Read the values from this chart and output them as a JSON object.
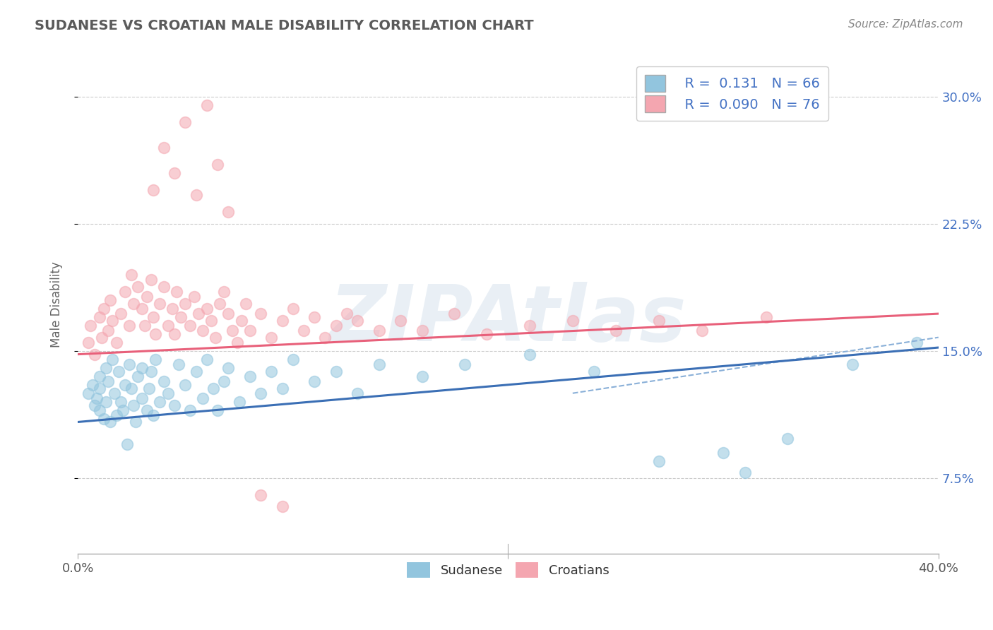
{
  "title": "SUDANESE VS CROATIAN MALE DISABILITY CORRELATION CHART",
  "source": "Source: ZipAtlas.com",
  "ylabel": "Male Disability",
  "xlim": [
    0.0,
    0.4
  ],
  "ylim": [
    0.03,
    0.325
  ],
  "ytick_labels_right": [
    "7.5%",
    "15.0%",
    "22.5%",
    "30.0%"
  ],
  "ytick_vals_right": [
    0.075,
    0.15,
    0.225,
    0.3
  ],
  "R_sudanese": 0.131,
  "N_sudanese": 66,
  "R_croatian": 0.09,
  "N_croatian": 76,
  "sudanese_color": "#92c5de",
  "croatian_color": "#f4a6b0",
  "sudanese_line_color": "#3b6fb5",
  "croatian_line_color": "#e8607a",
  "sudanese_dash_color": "#8ab0d8",
  "background_color": "#ffffff",
  "grid_color": "#cccccc",
  "title_color": "#5b5b5b",
  "source_color": "#888888",
  "ytick_color": "#4472c4",
  "xtick_color": "#555555",
  "watermark_color": "#c8d8e8",
  "watermark_text": "ZIPAtlas",
  "legend_text_color": "#4472c4",
  "sudanese_x": [
    0.005,
    0.007,
    0.008,
    0.009,
    0.01,
    0.01,
    0.01,
    0.012,
    0.013,
    0.013,
    0.014,
    0.015,
    0.016,
    0.017,
    0.018,
    0.019,
    0.02,
    0.021,
    0.022,
    0.023,
    0.024,
    0.025,
    0.026,
    0.027,
    0.028,
    0.03,
    0.03,
    0.032,
    0.033,
    0.034,
    0.035,
    0.036,
    0.038,
    0.04,
    0.042,
    0.045,
    0.047,
    0.05,
    0.052,
    0.055,
    0.058,
    0.06,
    0.063,
    0.065,
    0.068,
    0.07,
    0.075,
    0.08,
    0.085,
    0.09,
    0.095,
    0.1,
    0.11,
    0.12,
    0.13,
    0.14,
    0.16,
    0.18,
    0.21,
    0.24,
    0.27,
    0.3,
    0.31,
    0.33,
    0.36,
    0.39
  ],
  "sudanese_y": [
    0.125,
    0.13,
    0.118,
    0.122,
    0.115,
    0.128,
    0.135,
    0.11,
    0.14,
    0.12,
    0.132,
    0.108,
    0.145,
    0.125,
    0.112,
    0.138,
    0.12,
    0.115,
    0.13,
    0.095,
    0.142,
    0.128,
    0.118,
    0.108,
    0.135,
    0.122,
    0.14,
    0.115,
    0.128,
    0.138,
    0.112,
    0.145,
    0.12,
    0.132,
    0.125,
    0.118,
    0.142,
    0.13,
    0.115,
    0.138,
    0.122,
    0.145,
    0.128,
    0.115,
    0.132,
    0.14,
    0.12,
    0.135,
    0.125,
    0.138,
    0.128,
    0.145,
    0.132,
    0.138,
    0.125,
    0.142,
    0.135,
    0.142,
    0.148,
    0.138,
    0.085,
    0.09,
    0.078,
    0.098,
    0.142,
    0.155
  ],
  "croatian_x": [
    0.005,
    0.006,
    0.008,
    0.01,
    0.011,
    0.012,
    0.014,
    0.015,
    0.016,
    0.018,
    0.02,
    0.022,
    0.024,
    0.025,
    0.026,
    0.028,
    0.03,
    0.031,
    0.032,
    0.034,
    0.035,
    0.036,
    0.038,
    0.04,
    0.042,
    0.044,
    0.045,
    0.046,
    0.048,
    0.05,
    0.052,
    0.054,
    0.056,
    0.058,
    0.06,
    0.062,
    0.064,
    0.066,
    0.068,
    0.07,
    0.072,
    0.074,
    0.076,
    0.078,
    0.08,
    0.085,
    0.09,
    0.095,
    0.1,
    0.105,
    0.11,
    0.115,
    0.12,
    0.125,
    0.13,
    0.14,
    0.15,
    0.16,
    0.175,
    0.19,
    0.21,
    0.23,
    0.25,
    0.27,
    0.29,
    0.32,
    0.035,
    0.045,
    0.055,
    0.065,
    0.04,
    0.05,
    0.06,
    0.07,
    0.085,
    0.095
  ],
  "croatian_y": [
    0.155,
    0.165,
    0.148,
    0.17,
    0.158,
    0.175,
    0.162,
    0.18,
    0.168,
    0.155,
    0.172,
    0.185,
    0.165,
    0.195,
    0.178,
    0.188,
    0.175,
    0.165,
    0.182,
    0.192,
    0.17,
    0.16,
    0.178,
    0.188,
    0.165,
    0.175,
    0.16,
    0.185,
    0.17,
    0.178,
    0.165,
    0.182,
    0.172,
    0.162,
    0.175,
    0.168,
    0.158,
    0.178,
    0.185,
    0.172,
    0.162,
    0.155,
    0.168,
    0.178,
    0.162,
    0.172,
    0.158,
    0.168,
    0.175,
    0.162,
    0.17,
    0.158,
    0.165,
    0.172,
    0.168,
    0.162,
    0.168,
    0.162,
    0.172,
    0.16,
    0.165,
    0.168,
    0.162,
    0.168,
    0.162,
    0.17,
    0.245,
    0.255,
    0.242,
    0.26,
    0.27,
    0.285,
    0.295,
    0.232,
    0.065,
    0.058
  ]
}
